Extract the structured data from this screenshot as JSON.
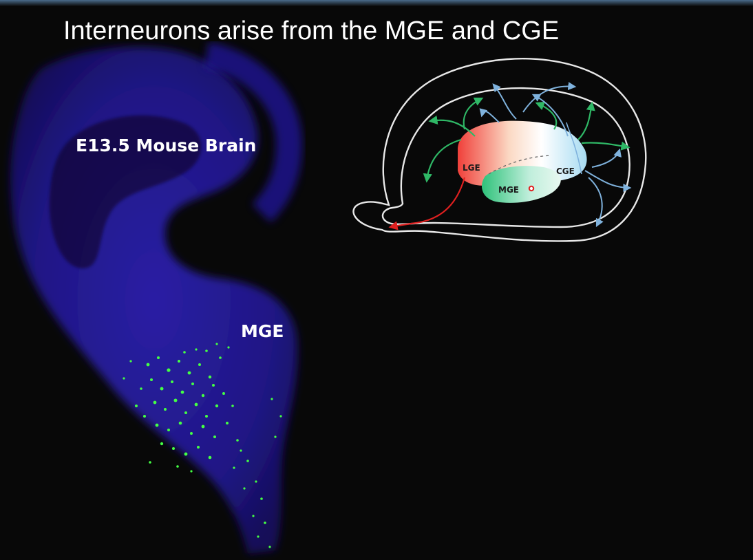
{
  "slide": {
    "title": "Interneurons arise from the MGE and CGE"
  },
  "micrograph": {
    "label_brain": "E13.5 Mouse Brain",
    "label_region": "MGE",
    "stain_colors": {
      "nuclear": "#2a1fb0",
      "cells": "#3dff3d"
    }
  },
  "diagram": {
    "labels": {
      "lge": "LGE",
      "mge": "MGE",
      "cge": "CGE"
    },
    "colors": {
      "lge": "#f0403a",
      "mge": "#2fc27a",
      "cge": "#8fd0ee",
      "arrow_green": "#2fb866",
      "arrow_blue": "#7fb2dd",
      "arrow_red": "#e02020",
      "outline": "#e8e8e8"
    }
  }
}
